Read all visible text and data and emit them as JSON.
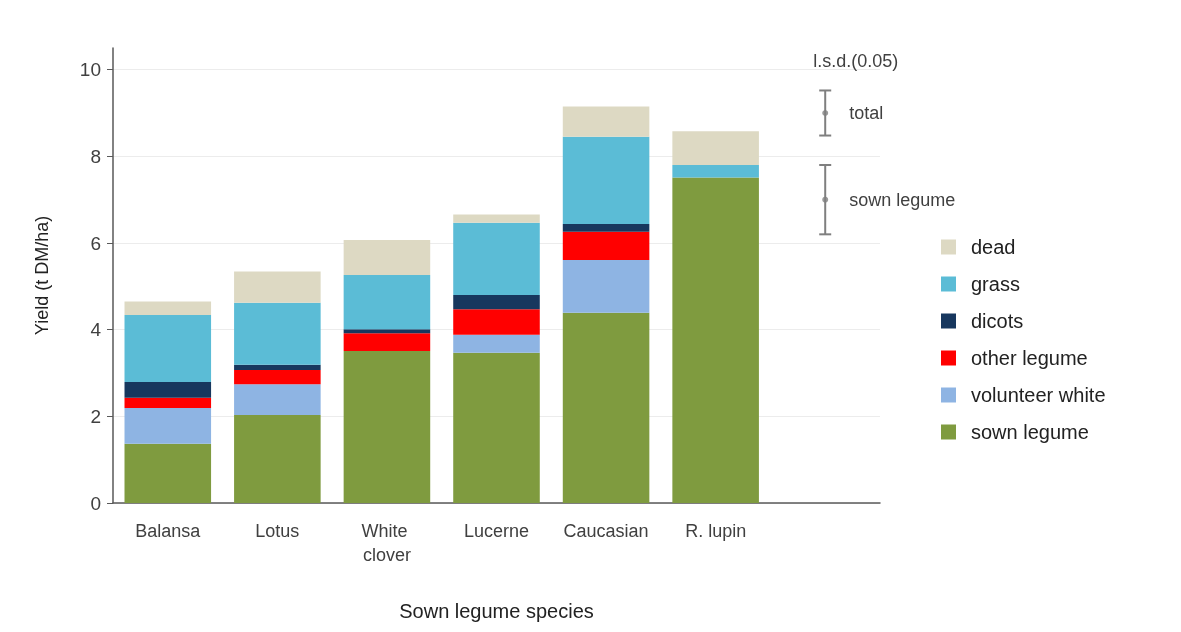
{
  "chart_data": {
    "type": "bar",
    "stacked": true,
    "xlabel": "Sown legume species",
    "ylabel": "Yield (t DM/ha)",
    "categories": [
      "Balansa",
      "Lotus",
      "White clover",
      "Lucerne",
      "Caucasian",
      "R. lupin",
      null
    ],
    "series": [
      {
        "name": "sown legume",
        "color": "#7f9b3f",
        "values": [
          1.37,
          2.03,
          3.51,
          3.47,
          4.39,
          7.51,
          null
        ]
      },
      {
        "name": "volunteer white",
        "color": "#8eb4e3",
        "values": [
          0.82,
          0.71,
          0,
          0.41,
          1.22,
          0,
          null
        ]
      },
      {
        "name": "other legume",
        "color": "#ff0000",
        "values": [
          0.24,
          0.33,
          0.41,
          0.59,
          0.65,
          0,
          null
        ]
      },
      {
        "name": "dicots",
        "color": "#17375e",
        "values": [
          0.36,
          0.12,
          0.09,
          0.33,
          0.18,
          0,
          null
        ]
      },
      {
        "name": "grass",
        "color": "#5bbcd6",
        "values": [
          1.55,
          1.43,
          1.25,
          1.67,
          2.01,
          0.29,
          null
        ]
      },
      {
        "name": "dead",
        "color": "#ddd9c3",
        "values": [
          0.31,
          0.72,
          0.81,
          0.19,
          0.7,
          0.78,
          null
        ]
      },
      {
        "name": "total",
        "type": "scatter",
        "marker": "circle",
        "color": "#7f7f7f",
        "values": [
          null,
          null,
          null,
          null,
          null,
          null,
          9.0
        ],
        "errors": [
          null,
          null,
          null,
          null,
          null,
          null,
          0.52
        ]
      },
      {
        "name": "sown legume",
        "type": "scatter",
        "marker": "circle",
        "color": "#7f7f7f",
        "values": [
          null,
          null,
          null,
          null,
          null,
          null,
          7.0
        ],
        "errors": [
          null,
          null,
          null,
          null,
          null,
          null,
          0.8
        ]
      }
    ],
    "ylim": [
      0,
      10.5
    ],
    "yticks": [
      0,
      2,
      4,
      6,
      8,
      10
    ],
    "grid": "y",
    "legend": "right",
    "annotations": [
      "l.s.d.(0.05)"
    ]
  }
}
